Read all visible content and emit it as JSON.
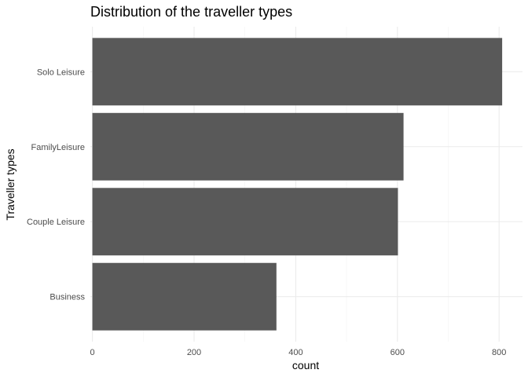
{
  "chart_data": {
    "type": "bar",
    "orientation": "horizontal",
    "title": "Distribution of the traveller types",
    "xlabel": "count",
    "ylabel": "Traveller types",
    "categories": [
      "Business",
      "Couple Leisure",
      "FamilyLeisure",
      "Solo Leisure"
    ],
    "values": [
      362,
      601,
      612,
      806
    ],
    "xlim": [
      -4,
      846
    ],
    "x_ticks": [
      0,
      200,
      400,
      600,
      800
    ],
    "x_tick_labels": [
      "0",
      "200",
      "400",
      "600",
      "800"
    ],
    "grid": true,
    "legend": "none",
    "bar_color": "#595959",
    "grid_color": "#ebebeb"
  }
}
